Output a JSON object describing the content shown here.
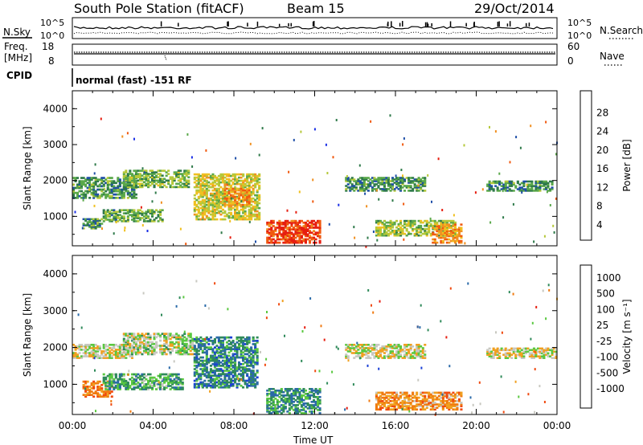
{
  "header": {
    "station": "South Pole Station (fitACF)",
    "beam": "Beam 15",
    "date": "29/Oct/2014"
  },
  "top_panels": {
    "nsky_label": "N.Sky",
    "nsky_scale_left_top": "10^5",
    "nsky_scale_left_bottom": "10^0",
    "nsky_scale_right_top": "10^5",
    "nsky_scale_right_bottom": "10^0",
    "nsearch_label": "N.Search",
    "freq_label": "Freq.",
    "freq_unit": "[MHz]",
    "freq_top": "18",
    "freq_bottom": "8",
    "nave_label": "Nave",
    "nave_top": "60",
    "nave_bottom": "0",
    "cpid_label": "CPID",
    "cpid_value": "normal (fast) -151 RF"
  },
  "chart_data": [
    {
      "type": "heatmap",
      "name": "power",
      "ylabel": "Slant Range [km]",
      "ylim": [
        180,
        4500
      ],
      "yticks": [
        "1000",
        "2000",
        "3000",
        "4000"
      ],
      "xlim_hours": [
        0,
        24
      ],
      "xticks": [
        "00:00",
        "04:00",
        "08:00",
        "12:00",
        "16:00",
        "20:00",
        "00:00"
      ],
      "colorbar_label": "Power [dB]",
      "colorbar_ticks": [
        "4",
        "8",
        "12",
        "16",
        "20",
        "24",
        "28"
      ],
      "colorbar_colors": [
        "#1a2fe6",
        "#1f4fa8",
        "#2f7a4a",
        "#5aa84a",
        "#b5c83a",
        "#f0c020",
        "#f09020",
        "#f05a10",
        "#e61e10"
      ],
      "regions": [
        {
          "x": [
            0.0,
            3.2
          ],
          "y": [
            1500,
            2100
          ],
          "level": 0.3
        },
        {
          "x": [
            2.5,
            5.8
          ],
          "y": [
            1800,
            2300
          ],
          "level": 0.4
        },
        {
          "x": [
            1.5,
            4.5
          ],
          "y": [
            850,
            1200
          ],
          "level": 0.35
        },
        {
          "x": [
            0.5,
            1.5
          ],
          "y": [
            650,
            950
          ],
          "level": 0.3
        },
        {
          "x": [
            6.0,
            9.3
          ],
          "y": [
            900,
            2200
          ],
          "level": 0.55
        },
        {
          "x": [
            7.5,
            8.8
          ],
          "y": [
            1300,
            1800
          ],
          "level": 0.75
        },
        {
          "x": [
            9.6,
            12.3
          ],
          "y": [
            250,
            900
          ],
          "level": 0.95
        },
        {
          "x": [
            13.5,
            17.5
          ],
          "y": [
            1700,
            2100
          ],
          "level": 0.3
        },
        {
          "x": [
            15.0,
            19.0
          ],
          "y": [
            450,
            900
          ],
          "level": 0.45
        },
        {
          "x": [
            17.8,
            19.3
          ],
          "y": [
            250,
            800
          ],
          "level": 0.75
        },
        {
          "x": [
            20.5,
            23.8
          ],
          "y": [
            1700,
            2000
          ],
          "level": 0.3
        }
      ]
    },
    {
      "type": "heatmap",
      "name": "velocity",
      "ylabel": "Slant Range [km]",
      "ylim": [
        180,
        4500
      ],
      "yticks": [
        "1000",
        "2000",
        "3000",
        "4000"
      ],
      "xlim_hours": [
        0,
        24
      ],
      "xticks": [
        "00:00",
        "04:00",
        "08:00",
        "12:00",
        "16:00",
        "20:00",
        "00:00"
      ],
      "xlabel": "Time UT",
      "colorbar_label": "Velocity [m s⁻¹]",
      "colorbar_ticks": [
        "1000",
        "500",
        "100",
        "25",
        "-25",
        "-100",
        "-500",
        "-1000"
      ],
      "colorbar_colors": [
        "#1a3fd6",
        "#2a6aa8",
        "#2f8a5a",
        "#5ac840",
        "#c8c8c0",
        "#f0a020",
        "#f07a10",
        "#f04a10",
        "#e61e10"
      ],
      "regions": [
        {
          "x": [
            0.0,
            3.0
          ],
          "y": [
            1700,
            2100
          ],
          "level": 0.5
        },
        {
          "x": [
            2.5,
            6.0
          ],
          "y": [
            1800,
            2400
          ],
          "level": 0.45
        },
        {
          "x": [
            0.5,
            2.0
          ],
          "y": [
            650,
            1100
          ],
          "level": 0.75
        },
        {
          "x": [
            1.5,
            5.5
          ],
          "y": [
            850,
            1300
          ],
          "level": 0.3
        },
        {
          "x": [
            6.0,
            9.2
          ],
          "y": [
            900,
            2300
          ],
          "level": 0.2
        },
        {
          "x": [
            9.6,
            12.3
          ],
          "y": [
            200,
            900
          ],
          "level": 0.25
        },
        {
          "x": [
            13.5,
            17.5
          ],
          "y": [
            1700,
            2100
          ],
          "level": 0.5
        },
        {
          "x": [
            15.0,
            19.3
          ],
          "y": [
            300,
            800
          ],
          "level": 0.7
        },
        {
          "x": [
            20.5,
            24.0
          ],
          "y": [
            1700,
            2000
          ],
          "level": 0.5
        }
      ]
    }
  ]
}
